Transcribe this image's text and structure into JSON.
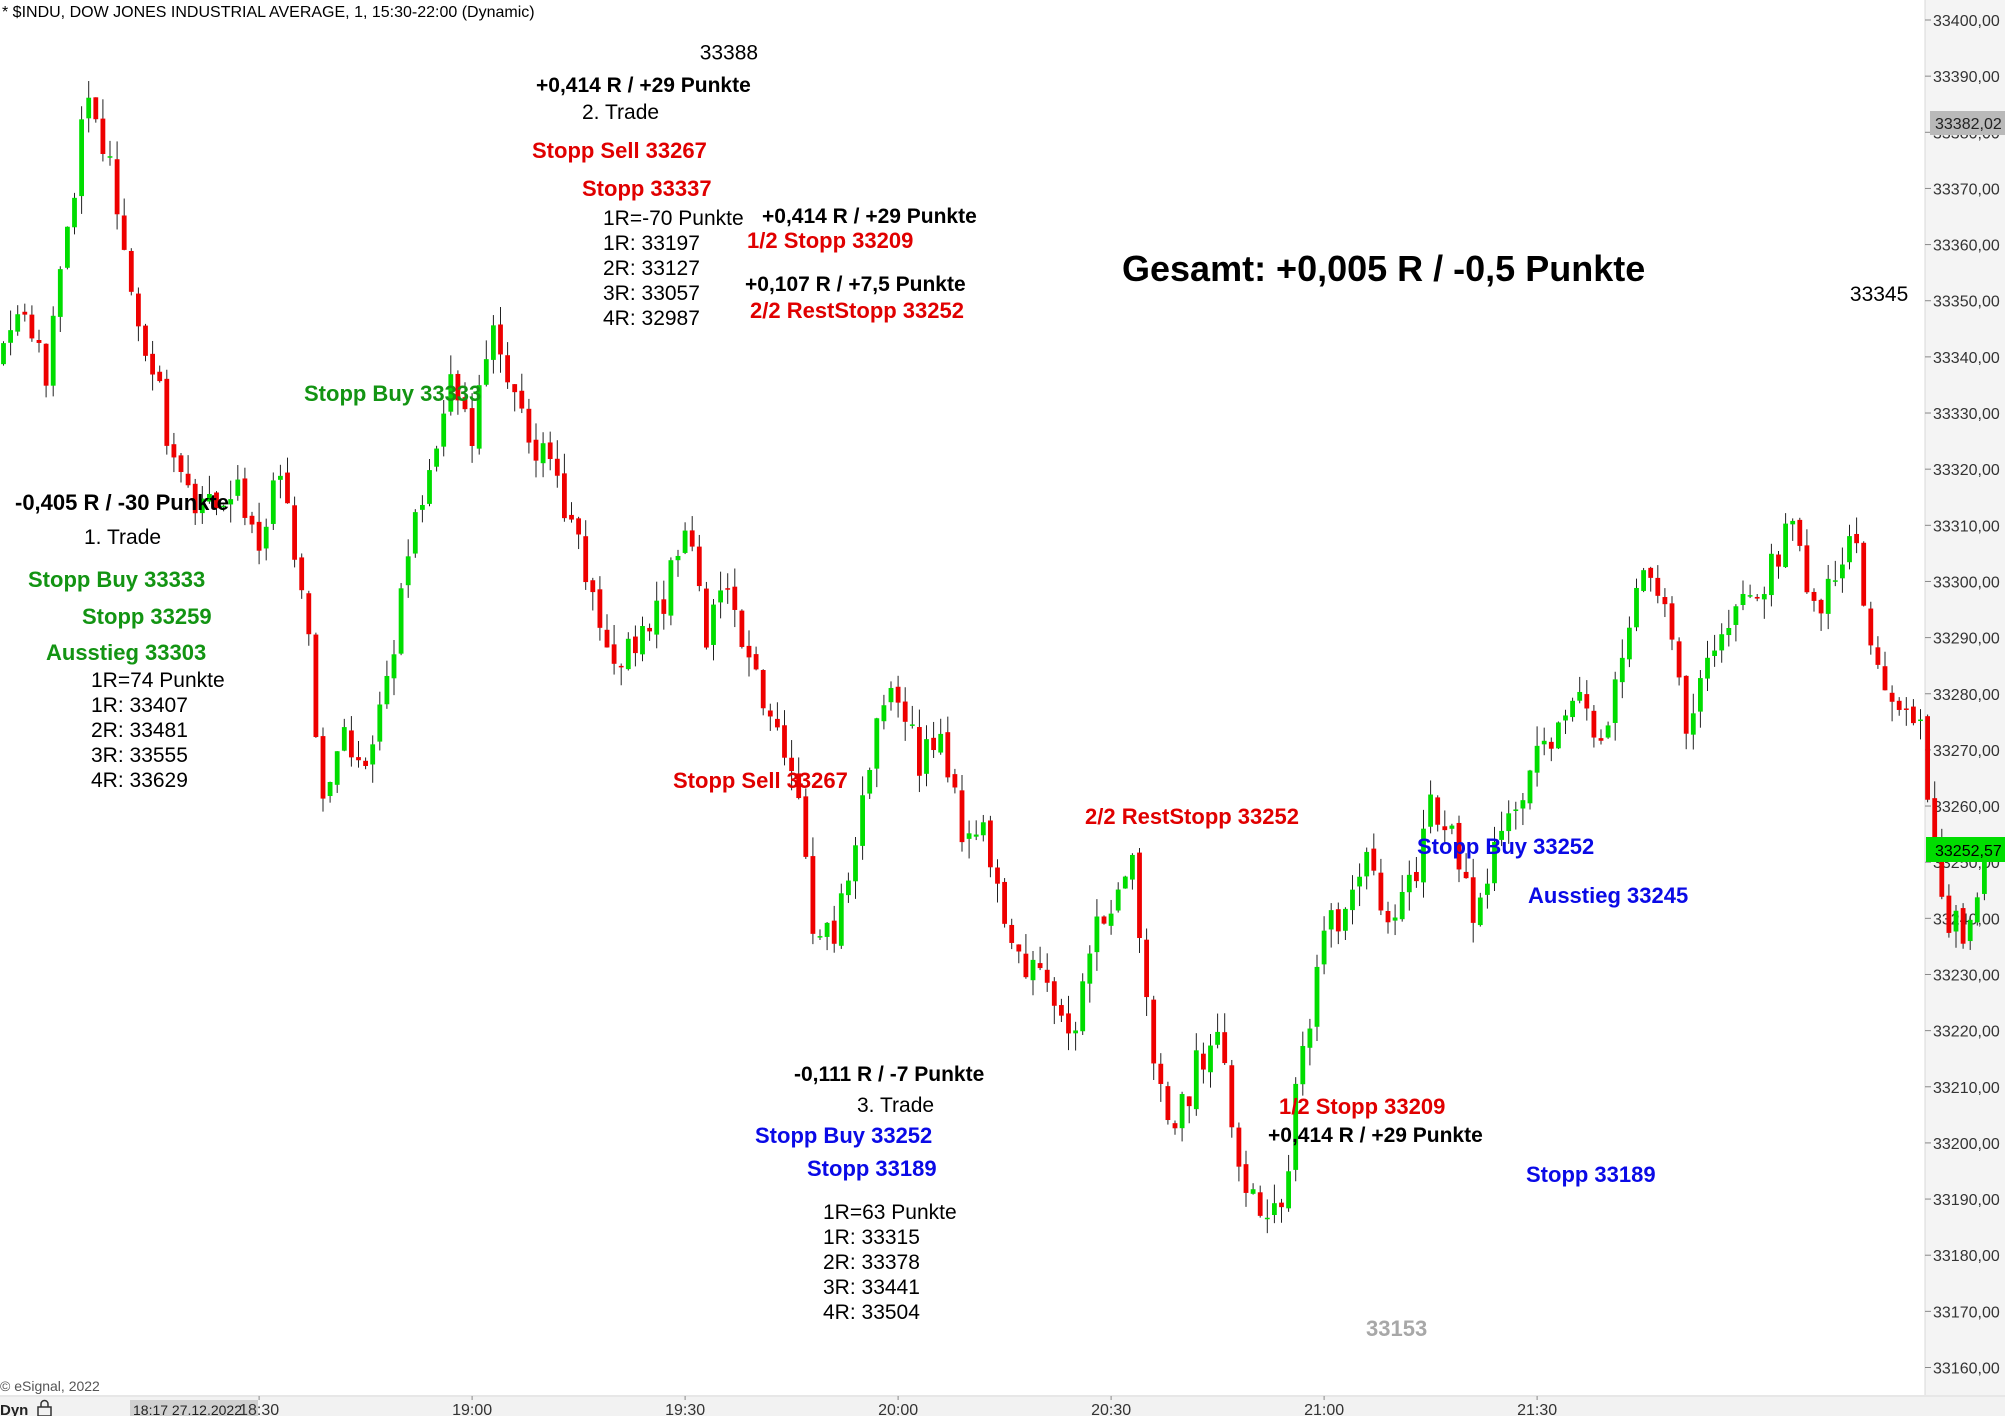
{
  "chart_header": "* $INDU, DOW JONES INDUSTRIAL AVERAGE, 1, 15:30-22:00 (Dynamic)",
  "copyright": "© eSignal, 2022",
  "bottom_bar": {
    "mode_label": "Dyn",
    "cursor_time": "18:17 27.12.2022"
  },
  "price_tags": {
    "high": "33382,02",
    "last": "33252,57"
  },
  "colors": {
    "up": "#00dd00",
    "down": "#ee0000",
    "green_text": "#139413",
    "red_text": "#e00000",
    "blue_text": "#0a0ae6",
    "last_tag": "#00dd00",
    "high_tag": "#b9b9b9"
  },
  "chart_data": {
    "type": "candlestick",
    "ylim": [
      33155,
      33401
    ],
    "y_ticks": [
      "33160,00",
      "33170,00",
      "33180,00",
      "33190,00",
      "33200,00",
      "33210,00",
      "33220,00",
      "33230,00",
      "33240,00",
      "33250,00",
      "33260,00",
      "33270,00",
      "33280,00",
      "33290,00",
      "33300,00",
      "33310,00",
      "33320,00",
      "33330,00",
      "33340,00",
      "33350,00",
      "33360,00",
      "33370,00",
      "33380,00",
      "33390,00",
      "33400,00"
    ],
    "x_ticks": [
      "18:30",
      "19:00",
      "19:30",
      "20:00",
      "20:30",
      "21:00",
      "21:30"
    ],
    "path": [
      33341,
      33347,
      33338,
      33362,
      33388,
      33375,
      33352,
      33338,
      33322,
      33312,
      33315,
      33318,
      33308,
      33318,
      33300,
      33263,
      33275,
      33264,
      33281,
      33305,
      33322,
      33337,
      33326,
      33345,
      33334,
      33323,
      33318,
      33306,
      33295,
      33285,
      33291,
      33297,
      33312,
      33291,
      33298,
      33285,
      33278,
      33268,
      33240,
      33238,
      33252,
      33274,
      33281,
      33268,
      33272,
      33256,
      33254,
      33238,
      33231,
      33226,
      33218,
      33234,
      33244,
      33252,
      33211,
      33202,
      33213,
      33222,
      33198,
      33186,
      33189,
      33217,
      33236,
      33243,
      33250,
      33237,
      33245,
      33259,
      33255,
      33238,
      33252,
      33262,
      33269,
      33276,
      33282,
      33270,
      33288,
      33300,
      33295,
      33274,
      33286,
      33293,
      33299,
      33302,
      33313,
      33295,
      33303,
      33306,
      33283,
      33277,
      33272,
      33242,
      33236,
      33252
    ],
    "price_labels": [
      {
        "x": 34,
        "v": "33388"
      },
      {
        "x": 88,
        "v": "33345"
      },
      {
        "x": 94,
        "v": "33259"
      },
      {
        "x": 138,
        "v": "33312"
      },
      {
        "x": 130,
        "v": "33284"
      },
      {
        "x": 168,
        "v": "33281"
      },
      {
        "x": 162,
        "v": "33235"
      },
      {
        "x": 186,
        "v": "33219"
      },
      {
        "x": 212,
        "v": "33184"
      },
      {
        "x": 239,
        "v": "33267"
      },
      {
        "x": 259,
        "v": "33266"
      },
      {
        "x": 272,
        "v": "33313"
      },
      {
        "x": 283,
        "v": "33305"
      },
      {
        "x": 276,
        "v": "33275"
      }
    ],
    "annotations": {
      "trade1": {
        "result": "-0,405 R / -30 Punkte",
        "name": "1. Trade",
        "entry": "Stopp Buy 33333",
        "stop": "Stopp 33259",
        "exit": "Ausstieg 33303",
        "r_info": [
          "1R=74 Punkte",
          "1R: 33407",
          "2R: 33481",
          "3R: 33555",
          "4R: 33629"
        ]
      },
      "trade2": {
        "result": "+0,414 R / +29 Punkte",
        "name": "2. Trade",
        "entry": "Stopp Sell 33267",
        "stop": "Stopp 33337",
        "r_info": [
          "1R=-70 Punkte",
          "1R: 33197",
          "2R: 33127",
          "3R: 33057",
          "4R: 32987"
        ],
        "half1_result": "+0,414 R / +29 Punkte",
        "half1_stop": "1/2 Stopp 33209",
        "half2_result": "+0,107 R / +7,5 Punkte",
        "half2_stop": "2/2 RestStopp 33252"
      },
      "trade3": {
        "result": "-0,111 R / -7 Punkte",
        "name": "3. Trade",
        "entry": "Stopp Buy 33252",
        "stop": "Stopp 33189",
        "r_info": [
          "1R=63 Punkte",
          "1R: 33315",
          "2R: 33378",
          "3R: 33441",
          "4R: 33504"
        ]
      },
      "chart_notes": {
        "buy1": "Stopp Buy 33333",
        "sell1": "Stopp Sell 33267",
        "rest_stop": "2/2 RestStopp 33252",
        "half_stop": "1/2 Stopp 33209",
        "half_result": "+0,414 R / +29 Punkte",
        "buy3": "Stopp Buy 33252",
        "exit3": "Ausstieg 33245",
        "stop3": "Stopp 33189",
        "faint_level": "33153"
      },
      "total": "Gesamt: +0,005 R / -0,5 Punkte"
    }
  }
}
